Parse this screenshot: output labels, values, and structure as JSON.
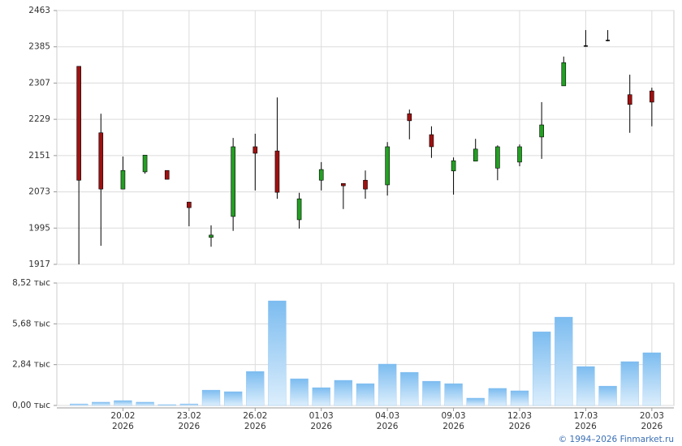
{
  "chart_data": [
    {
      "type": "candlestick",
      "open": [
        2343,
        2200,
        2079,
        2116,
        2119,
        2051,
        1975,
        2020,
        2170,
        2161,
        2013,
        2098,
        2091,
        2098,
        2088,
        2241,
        2196,
        2118,
        2139,
        2124,
        2137,
        2191,
        2301,
        2388,
        2400,
        2282,
        2290
      ],
      "high": [
        2343,
        2241,
        2149,
        2152,
        2119,
        2051,
        2001,
        2189,
        2198,
        2276,
        2071,
        2137,
        2091,
        2119,
        2180,
        2250,
        2214,
        2147,
        2187,
        2173,
        2175,
        2266,
        2364,
        2421,
        2421,
        2325,
        2297
      ],
      "low": [
        1917,
        1957,
        2079,
        2112,
        2100,
        1999,
        1955,
        1989,
        2076,
        2058,
        1994,
        2076,
        2036,
        2058,
        2065,
        2186,
        2146,
        2067,
        2139,
        2098,
        2128,
        2144,
        2301,
        2385,
        2397,
        2200,
        2214
      ],
      "close": [
        2098,
        2079,
        2119,
        2152,
        2100,
        2039,
        1980,
        2170,
        2156,
        2072,
        2058,
        2121,
        2086,
        2079,
        2170,
        2226,
        2170,
        2140,
        2165,
        2170,
        2170,
        2217,
        2351,
        2388,
        2400,
        2261,
        2266
      ],
      "up_color": "#22a022",
      "down_color": "#a01010",
      "flat_color": "#000000",
      "ylim": [
        1917,
        2463
      ],
      "yticks": [
        1917,
        1995,
        2073,
        2151,
        2229,
        2307,
        2385,
        2463
      ],
      "grid": true
    },
    {
      "type": "bar",
      "categories": [
        null,
        null,
        "20.02",
        null,
        null,
        "23.02",
        null,
        null,
        "26.02",
        null,
        null,
        "01.03",
        null,
        null,
        "04.03",
        null,
        null,
        "09.03",
        null,
        null,
        "12.03",
        null,
        null,
        "17.03",
        null,
        null,
        "20.03"
      ],
      "category_years": [
        null,
        null,
        "2026",
        null,
        null,
        "2026",
        null,
        null,
        "2026",
        null,
        null,
        "2026",
        null,
        null,
        "2026",
        null,
        null,
        "2026",
        null,
        null,
        "2026",
        null,
        null,
        "2026",
        null,
        null,
        "2026"
      ],
      "values": [
        110,
        230,
        340,
        230,
        60,
        110,
        1070,
        960,
        2370,
        7280,
        1860,
        1240,
        1750,
        1520,
        2880,
        2310,
        1690,
        1520,
        510,
        1190,
        1020,
        5130,
        6150,
        2710,
        1350,
        3050,
        3670
      ],
      "color": "#7cbcf0",
      "ylim": [
        0,
        8520
      ],
      "yticks": [
        {
          "value": 0,
          "label": "0,00 тыс"
        },
        {
          "value": 2840,
          "label": "2,84 тыс"
        },
        {
          "value": 5680,
          "label": "5,68 тыс"
        },
        {
          "value": 8520,
          "label": "8,52 тыс"
        }
      ],
      "grid": true
    }
  ],
  "footer": "© 1994–2026 Finmarket.ru"
}
